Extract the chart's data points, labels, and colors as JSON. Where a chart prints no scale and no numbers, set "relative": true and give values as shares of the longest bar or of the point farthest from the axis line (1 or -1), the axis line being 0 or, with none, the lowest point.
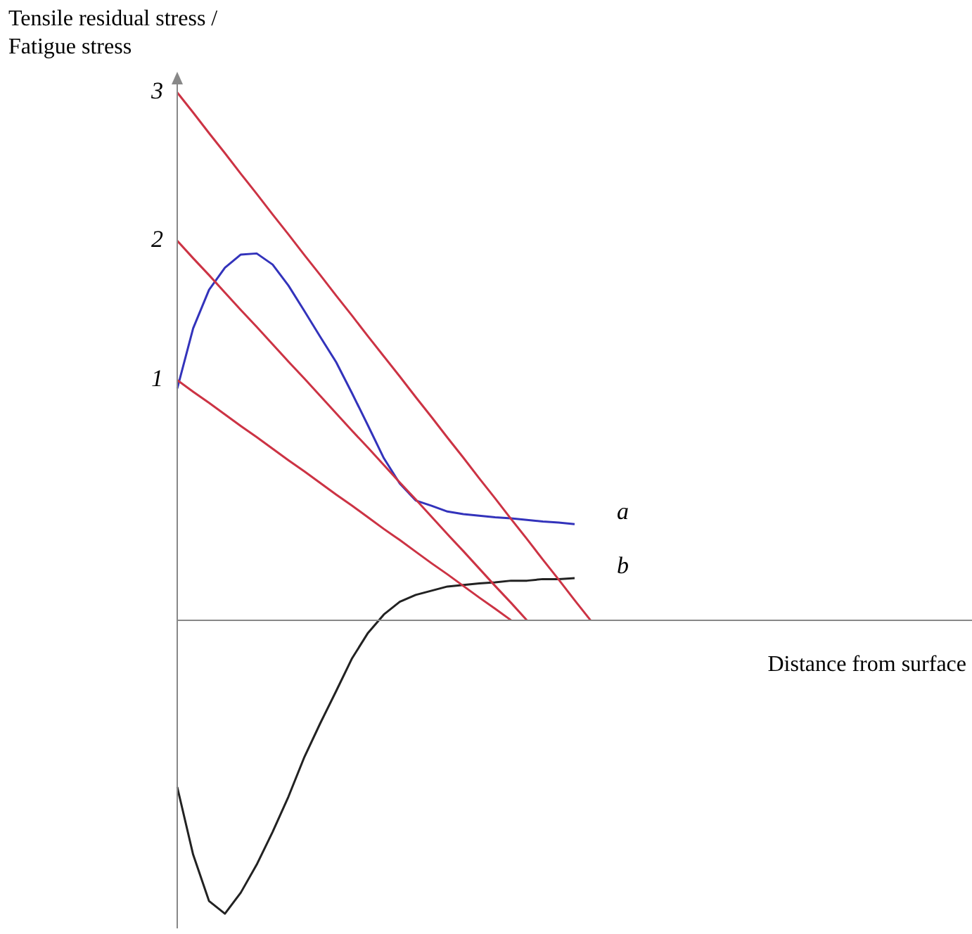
{
  "chart_data": {
    "type": "line",
    "xlabel": "Distance from surface",
    "ylabel": "Tensile residual stress / Fatigue stress",
    "relative": true,
    "tick_labels": false,
    "marker": "none",
    "line_style": "solid",
    "categories": [
      null,
      null,
      null,
      null,
      null,
      null,
      null,
      null,
      null,
      null,
      null,
      null,
      null,
      null,
      null,
      null,
      null,
      null,
      null,
      null,
      null,
      null,
      null,
      null,
      null,
      null,
      null,
      null,
      null,
      null,
      null,
      null,
      null,
      null,
      null,
      null,
      null,
      null,
      null,
      null,
      null,
      null,
      null,
      null,
      null,
      null,
      null,
      null,
      null,
      null,
      null
    ],
    "series": [
      {
        "name": "3",
        "color": "#cc3344",
        "values": [
          1,
          0.962,
          0.923,
          0.885,
          0.846,
          0.808,
          0.769,
          0.731,
          0.692,
          0.654,
          0.615,
          0.577,
          0.538,
          0.5,
          0.462,
          0.423,
          0.385,
          0.346,
          0.308,
          0.269,
          0.231,
          0.192,
          0.154,
          0.115,
          0.077,
          0.038,
          0,
          null,
          null,
          null,
          null,
          null,
          null,
          null,
          null,
          null,
          null,
          null,
          null,
          null,
          null,
          null,
          null,
          null,
          null,
          null,
          null,
          null,
          null,
          null,
          null
        ]
      },
      {
        "name": "2",
        "color": "#cc3344",
        "values": [
          0.719,
          0.686,
          0.654,
          0.621,
          0.588,
          0.556,
          0.523,
          0.49,
          0.458,
          0.425,
          0.392,
          0.359,
          0.327,
          0.294,
          0.261,
          0.229,
          0.196,
          0.163,
          0.131,
          0.098,
          0.065,
          0.033,
          0,
          null,
          null,
          null,
          null,
          null,
          null,
          null,
          null,
          null,
          null,
          null,
          null,
          null,
          null,
          null,
          null,
          null,
          null,
          null,
          null,
          null,
          null,
          null,
          null,
          null,
          null,
          null,
          null
        ]
      },
      {
        "name": "1",
        "color": "#cc3344",
        "values": [
          0.455,
          0.433,
          0.412,
          0.39,
          0.368,
          0.347,
          0.325,
          0.303,
          0.282,
          0.26,
          0.238,
          0.217,
          0.195,
          0.173,
          0.152,
          0.13,
          0.108,
          0.087,
          0.065,
          0.043,
          0.022,
          0,
          null,
          null,
          null,
          null,
          null,
          null,
          null,
          null,
          null,
          null,
          null,
          null,
          null,
          null,
          null,
          null,
          null,
          null,
          null,
          null,
          null,
          null,
          null,
          null,
          null,
          null,
          null,
          null,
          null
        ]
      },
      {
        "name": "a",
        "color": "#3333bb",
        "values": [
          0.439,
          0.553,
          0.626,
          0.668,
          0.693,
          0.695,
          0.674,
          0.634,
          0.586,
          0.537,
          0.489,
          0.43,
          0.369,
          0.307,
          0.259,
          0.227,
          0.217,
          0.206,
          0.201,
          0.198,
          0.195,
          0.193,
          0.19,
          0.187,
          0.185,
          0.182,
          null,
          null,
          null,
          null,
          null,
          null,
          null,
          null,
          null,
          null,
          null,
          null,
          null,
          null,
          null,
          null,
          null,
          null,
          null,
          null,
          null,
          null,
          null,
          null,
          null
        ]
      },
      {
        "name": "b",
        "color": "#222222",
        "values": [
          -0.316,
          -0.444,
          -0.532,
          -0.556,
          -0.516,
          -0.463,
          -0.401,
          -0.334,
          -0.259,
          -0.195,
          -0.134,
          -0.072,
          -0.024,
          0.011,
          0.035,
          0.048,
          0.056,
          0.064,
          0.067,
          0.07,
          0.072,
          0.075,
          0.075,
          0.078,
          0.078,
          0.08,
          null,
          null,
          null,
          null,
          null,
          null,
          null,
          null,
          null,
          null,
          null,
          null,
          null,
          null,
          null,
          null,
          null,
          null,
          null,
          null,
          null,
          null,
          null,
          null,
          null
        ]
      }
    ]
  }
}
